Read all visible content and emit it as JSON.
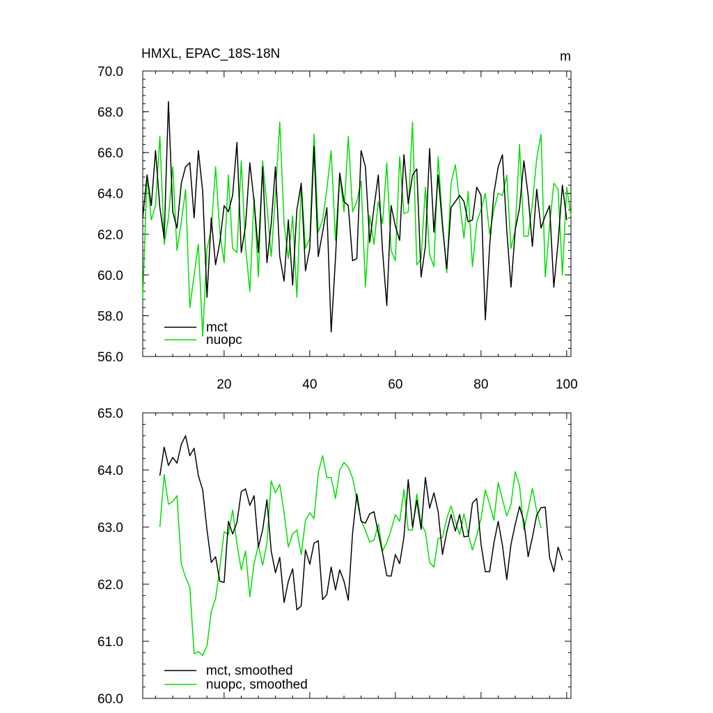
{
  "figure": {
    "width": 1024,
    "height": 1024
  },
  "chart_data": [
    {
      "type": "line",
      "title": "HMXL, EPAC_18S-18N",
      "units": "m",
      "xlim": [
        1,
        101
      ],
      "ylim": [
        56,
        70
      ],
      "xticks": [
        20,
        40,
        60,
        80,
        100
      ],
      "xtick_labels": [
        "20",
        "40",
        "60",
        "80",
        "100"
      ],
      "yticks": [
        56,
        58,
        60,
        62,
        64,
        66,
        68,
        70
      ],
      "ytick_labels": [
        "56.0",
        "58.0",
        "60.0",
        "62.0",
        "64.0",
        "66.0",
        "68.0",
        "70.0"
      ],
      "show_xtick_labels": true,
      "legend": {
        "placement": "bottom-left"
      },
      "series": [
        {
          "name": "mct",
          "color": "#000000",
          "start_x": 1,
          "values": [
            62.8,
            64.9,
            63.4,
            66.1,
            63.3,
            61.8,
            68.5,
            63.1,
            62.3,
            64.5,
            65.3,
            65.5,
            62.8,
            66.1,
            64.1,
            58.9,
            62.8,
            60.5,
            61.6,
            63.4,
            63.1,
            63.9,
            66.5,
            61.1,
            62.4,
            65.5,
            63.6,
            61.1,
            65.3,
            60.6,
            62.5,
            65.3,
            60.9,
            59.7,
            62.7,
            59.5,
            63.2,
            64.5,
            60.2,
            61.3,
            66.3,
            60.9,
            62.1,
            63.3,
            57.2,
            60.8,
            65.0,
            63.6,
            63.4,
            60.7,
            60.8,
            66.1,
            65.3,
            61.6,
            63.3,
            64.9,
            61.2,
            58.5,
            63.4,
            62.4,
            61.7,
            65.9,
            63.5,
            64.9,
            65.2,
            59.9,
            61.4,
            66.2,
            62.1,
            64.9,
            62.4,
            60.3,
            63.3,
            63.6,
            63.9,
            63.6,
            62.6,
            62.7,
            64.3,
            63.9,
            57.8,
            61.4,
            64.0,
            65.3,
            65.9,
            62.2,
            59.4,
            62.2,
            63.3,
            65.6,
            63.9,
            61.4,
            64.2,
            62.3,
            62.9,
            63.4,
            59.4,
            61.6,
            64.4,
            62.7
          ]
        },
        {
          "name": "nuopc",
          "color": "#00dd00",
          "start_x": 1,
          "values": [
            58.8,
            64.9,
            62.7,
            63.4,
            66.8,
            61.5,
            62.8,
            65.3,
            61.2,
            62.6,
            64.2,
            58.4,
            60.0,
            61.5,
            57.0,
            61.3,
            62.2,
            65.3,
            62.1,
            60.6,
            64.9,
            61.3,
            61.1,
            65.6,
            61.4,
            59.2,
            63.8,
            59.9,
            65.6,
            63.4,
            60.9,
            63.9,
            67.5,
            62.5,
            60.8,
            62.9,
            58.9,
            64.5,
            61.3,
            61.8,
            66.9,
            62.1,
            62.7,
            64.2,
            66.1,
            61.7,
            64.9,
            63.1,
            66.8,
            63.1,
            63.6,
            64.6,
            59.4,
            62.9,
            61.5,
            63.6,
            62.5,
            65.5,
            61.2,
            60.7,
            65.8,
            63.0,
            63.1,
            67.5,
            60.5,
            60.8,
            64.3,
            61.0,
            60.4,
            65.8,
            62.6,
            60.1,
            64.5,
            65.4,
            63.6,
            61.8,
            64.1,
            60.4,
            62.6,
            63.2,
            64.0,
            62.0,
            63.2,
            64.0,
            63.9,
            64.9,
            61.3,
            62.2,
            66.4,
            61.9,
            61.9,
            63.5,
            65.7,
            66.9,
            59.9,
            62.4,
            64.5,
            64.2,
            60.0,
            64.3,
            62.9
          ]
        }
      ]
    },
    {
      "type": "line",
      "xlim": [
        1,
        101
      ],
      "ylim": [
        60,
        65
      ],
      "xticks": [
        20,
        40,
        60,
        80,
        100
      ],
      "xtick_labels": [
        "20",
        "40",
        "60",
        "80",
        "100"
      ],
      "yticks": [
        60,
        61,
        62,
        63,
        64,
        65
      ],
      "ytick_labels": [
        "60.0",
        "61.0",
        "62.0",
        "63.0",
        "64.0",
        "65.0"
      ],
      "show_xtick_labels": false,
      "legend": {
        "placement": "bottom-left"
      },
      "series": [
        {
          "name": "mct, smoothed",
          "color": "#000000",
          "start_x": 5,
          "values": [
            63.9,
            64.4,
            64.08,
            64.22,
            64.12,
            64.45,
            64.6,
            64.25,
            64.38,
            63.9,
            63.65,
            62.95,
            62.38,
            62.48,
            62.05,
            62.03,
            63.1,
            62.88,
            63.08,
            63.62,
            63.67,
            63.38,
            63.55,
            62.65,
            62.95,
            63.48,
            62.58,
            62.2,
            62.47,
            61.68,
            62.05,
            62.27,
            61.55,
            61.62,
            62.6,
            62.35,
            62.72,
            62.76,
            61.73,
            61.82,
            62.3,
            61.9,
            62.25,
            62.05,
            61.72,
            62.9,
            63.58,
            63.1,
            63.07,
            63.23,
            63.27,
            62.9,
            62.55,
            62.15,
            62.14,
            62.52,
            62.36,
            62.82,
            63.83,
            63.0,
            63.47,
            62.96,
            63.87,
            63.33,
            63.6,
            63.27,
            62.52,
            62.91,
            63.22,
            62.93,
            63.22,
            62.83,
            62.84,
            63.42,
            63.5,
            62.7,
            62.22,
            62.22,
            62.72,
            63.1,
            62.68,
            62.08,
            62.7,
            63.05,
            63.36,
            63.1,
            62.48,
            62.82,
            63.21,
            63.34,
            63.35,
            62.47,
            62.22,
            62.65,
            62.42
          ]
        },
        {
          "name": "nuopc, smoothed",
          "color": "#00dd00",
          "start_x": 5,
          "values": [
            63.0,
            63.92,
            63.4,
            63.45,
            63.55,
            62.35,
            62.12,
            61.95,
            60.78,
            60.82,
            60.75,
            60.92,
            61.52,
            61.75,
            62.28,
            62.92,
            62.87,
            63.3,
            62.7,
            62.25,
            62.58,
            61.78,
            62.36,
            62.68,
            62.33,
            62.72,
            63.81,
            63.6,
            63.75,
            63.25,
            62.65,
            62.88,
            62.95,
            62.52,
            63.12,
            63.25,
            63.15,
            63.95,
            64.25,
            63.87,
            63.87,
            63.5,
            64.0,
            64.13,
            64.05,
            63.86,
            63.48,
            63.12,
            62.94,
            62.74,
            62.77,
            63.05,
            62.58,
            62.73,
            62.95,
            63.22,
            63.1,
            63.66,
            62.95,
            62.95,
            63.58,
            63.05,
            62.92,
            62.38,
            62.3,
            62.8,
            62.82,
            63.15,
            63.37,
            63.1,
            62.87,
            63.23,
            62.88,
            62.6,
            62.85,
            63.15,
            63.65,
            63.4,
            63.12,
            63.78,
            63.48,
            63.2,
            63.4,
            63.97,
            63.72,
            62.95,
            63.3,
            63.68,
            63.28,
            62.98
          ]
        }
      ]
    }
  ]
}
